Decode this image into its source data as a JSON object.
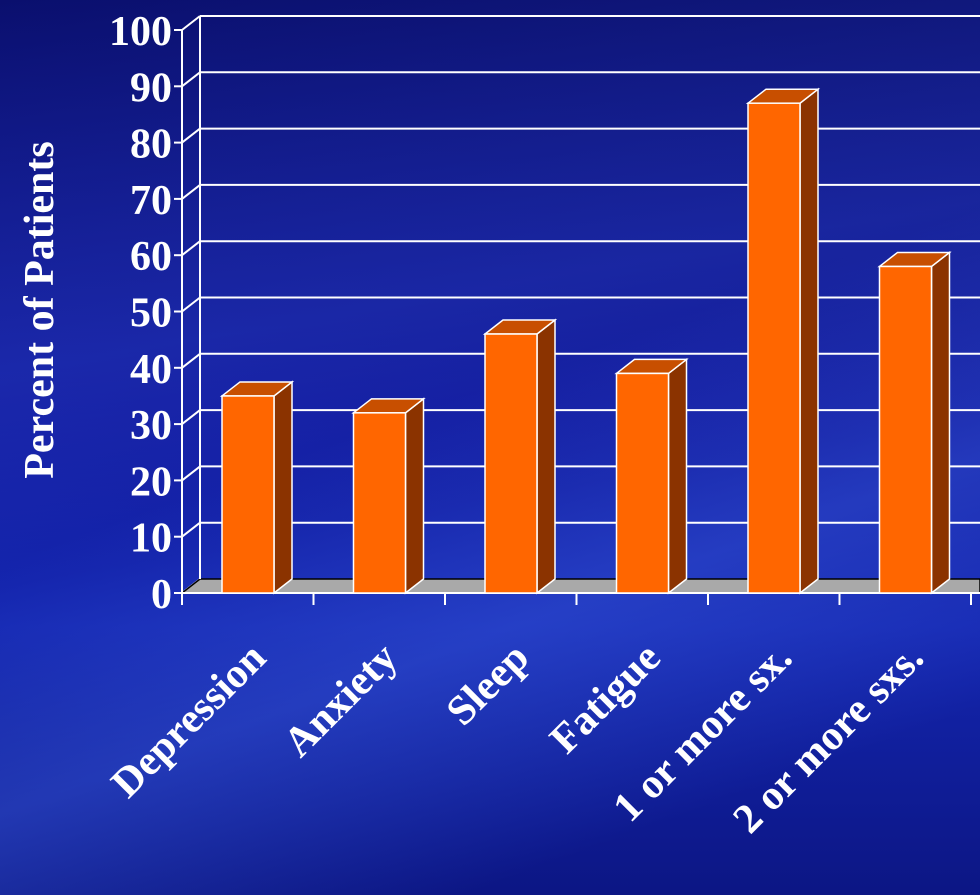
{
  "chart_data": {
    "type": "bar",
    "ylabel": "Percent of Patients",
    "ylim": [
      0,
      100
    ],
    "yticks": [
      "0",
      "10",
      "20",
      "30",
      "40",
      "50",
      "60",
      "70",
      "80",
      "90",
      "100"
    ],
    "categories": [
      "Depression",
      "Anxiety",
      "Sleep",
      "Fatigue",
      "1 or more sx.",
      "2 or more sxs."
    ],
    "values": [
      35,
      32,
      46,
      39,
      87,
      58
    ],
    "grid": true,
    "colors": {
      "bar_front": "#ff6600",
      "bar_side": "#8b3300",
      "bar_top": "#c84f00",
      "floor": "#a9a9a9",
      "grid": "#ffffff",
      "text": "#ffffff"
    }
  }
}
